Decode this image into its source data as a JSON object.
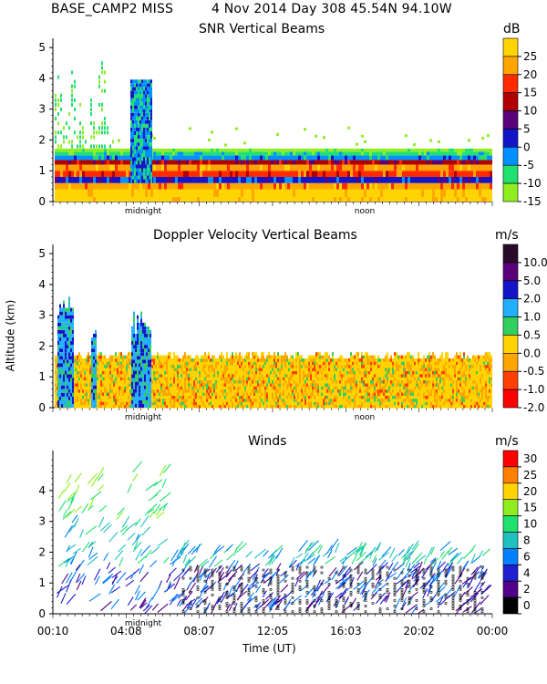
{
  "header": {
    "site": "BASE_CAMP2 MISS",
    "date": "4 Nov 2014 Day 308 45.54N  94.10W"
  },
  "chart_data": [
    {
      "type": "heatmap",
      "title": "SNR Vertical Beams",
      "unit": "dB",
      "ylim": [
        0,
        5.3
      ],
      "yticks": [
        "0",
        "1",
        "2",
        "3",
        "4",
        "5"
      ],
      "time_labels": [
        "midnight",
        "noon"
      ],
      "colorbar": {
        "labels": [
          "25",
          "20",
          "15",
          "10",
          "5",
          "0",
          "-5",
          "-10",
          "-15"
        ],
        "colors": [
          "#ffd400",
          "#ffa500",
          "#ff2a00",
          "#b00000",
          "#5a007a",
          "#1414c8",
          "#0090ff",
          "#20e070",
          "#90ee20"
        ]
      }
    },
    {
      "type": "heatmap",
      "title": "Doppler Velocity Vertical Beams",
      "unit": "m/s",
      "ylabel": "Altitude (km)",
      "ylim": [
        0,
        5.3
      ],
      "yticks": [
        "0",
        "1",
        "2",
        "3",
        "4",
        "5"
      ],
      "time_labels": [
        "midnight",
        "noon"
      ],
      "colorbar": {
        "labels": [
          "10.0",
          "5.0",
          "2.0",
          "1.0",
          "0.5",
          "0.0",
          "-0.5",
          "-1.0",
          "-2.0"
        ],
        "colors": [
          "#2a0a2a",
          "#5a007a",
          "#1414c8",
          "#20b0ff",
          "#30d060",
          "#ffd400",
          "#ffa500",
          "#ff4000",
          "#ff0000"
        ]
      }
    },
    {
      "type": "scatter",
      "title": "Winds",
      "unit": "m/s",
      "xlabel": "Time (UT)",
      "ylim": [
        0,
        5.3
      ],
      "yticks": [
        "0",
        "1",
        "2",
        "3",
        "4"
      ],
      "xticks": [
        "00:10",
        "04:08",
        "08:07",
        "12:05",
        "16:03",
        "20:02",
        "00:00"
      ],
      "time_labels": [
        "midnight"
      ],
      "colorbar": {
        "labels": [
          "30",
          "25",
          "20",
          "15",
          "10",
          "8",
          "6",
          "4",
          "2",
          "0"
        ],
        "colors": [
          "#ff0000",
          "#ff7f00",
          "#ffd400",
          "#90ee20",
          "#20e070",
          "#20c0c0",
          "#0080ff",
          "#2020d0",
          "#50008a",
          "#000000"
        ]
      }
    }
  ]
}
